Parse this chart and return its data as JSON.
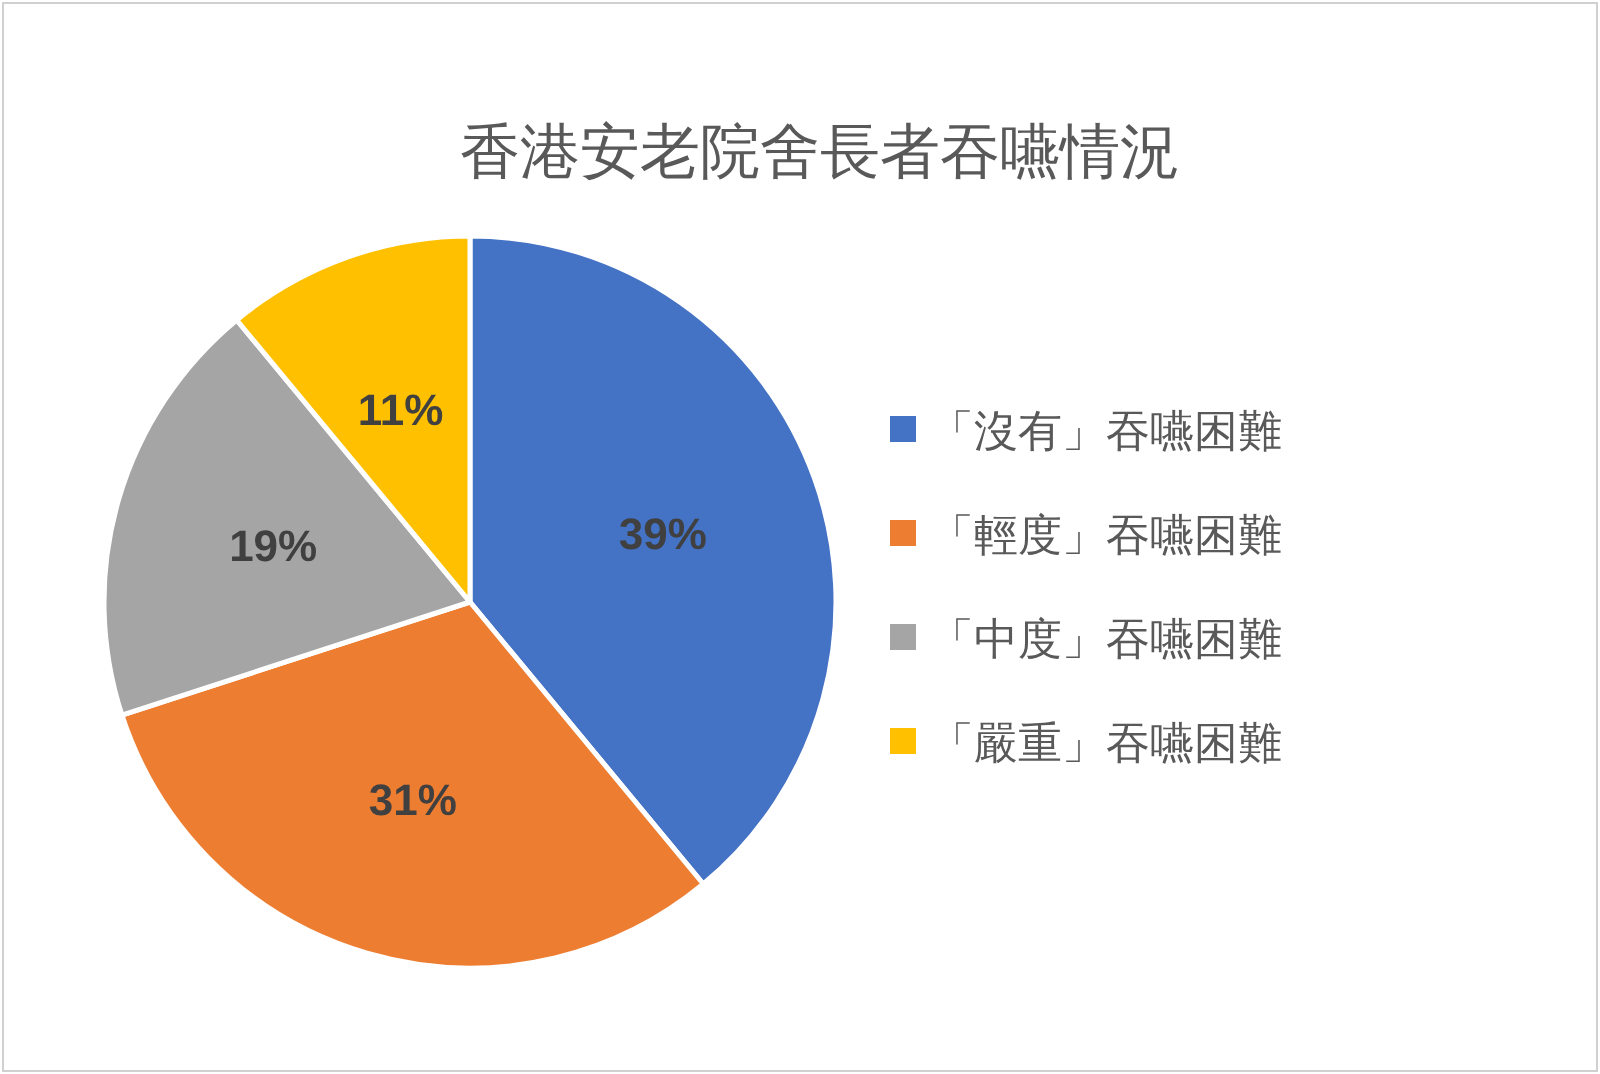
{
  "chart_data": {
    "type": "pie",
    "title": "香港安老院舍長者吞嚥情況",
    "categories": [
      "「沒有」吞嚥困難",
      "「輕度」吞嚥困難",
      "「中度」吞嚥困難",
      "「嚴重」吞嚥困難"
    ],
    "values": [
      39,
      31,
      19,
      11
    ],
    "colors": [
      "#4472c4",
      "#ed7d31",
      "#a5a5a5",
      "#ffc000"
    ],
    "value_labels": [
      "39%",
      "31%",
      "19%",
      "11%"
    ],
    "legend": "right"
  }
}
